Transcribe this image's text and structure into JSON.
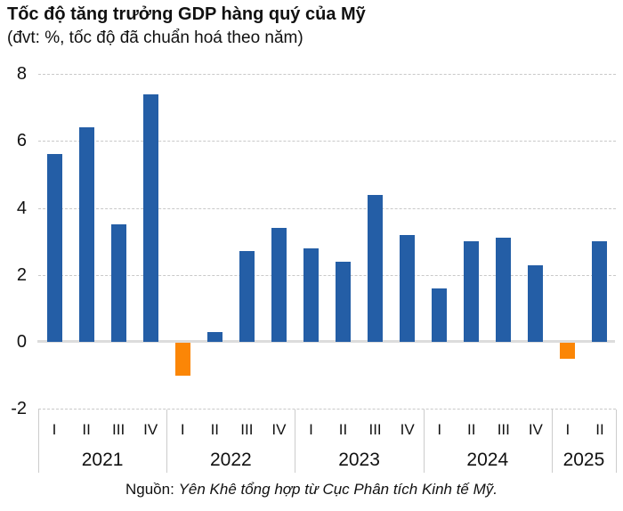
{
  "header": {
    "title": "Tốc độ tăng trưởng GDP hàng quý của Mỹ",
    "subtitle": "(đvt: %, tốc độ đã chuẩn hoá theo năm)"
  },
  "source": {
    "prefix": "Nguồn:",
    "text": "Yên Khê tổng hợp từ Cục Phân tích Kinh tế Mỹ."
  },
  "chart_data": {
    "type": "bar",
    "title": "Tốc độ tăng trưởng GDP hàng quý của Mỹ",
    "subtitle": "(đvt: %, tốc độ đã chuẩn hoá theo năm)",
    "unit": "%",
    "ylim": [
      -2,
      8
    ],
    "yticks": [
      8,
      6,
      4,
      2,
      0,
      -2
    ],
    "grid": "horizontal-dashed",
    "legend": "none",
    "groups": [
      {
        "year": "2021",
        "quarters": [
          "I",
          "II",
          "III",
          "IV"
        ],
        "values": [
          5.6,
          6.4,
          3.5,
          7.4
        ]
      },
      {
        "year": "2022",
        "quarters": [
          "I",
          "II",
          "III",
          "IV"
        ],
        "values": [
          -1.0,
          0.3,
          2.7,
          3.4
        ]
      },
      {
        "year": "2023",
        "quarters": [
          "I",
          "II",
          "III",
          "IV"
        ],
        "values": [
          2.8,
          2.4,
          4.4,
          3.2
        ]
      },
      {
        "year": "2024",
        "quarters": [
          "I",
          "II",
          "III",
          "IV"
        ],
        "values": [
          1.6,
          3.0,
          3.1,
          2.3
        ]
      },
      {
        "year": "2025",
        "quarters": [
          "I",
          "II"
        ],
        "values": [
          -0.5,
          3.0
        ]
      }
    ],
    "colors": {
      "positive_bar": "#245ea6",
      "negative_bar": "#fb8606",
      "gridline": "#c9c9c9",
      "zero_line": "#dcdcdc",
      "text": "#111111"
    }
  }
}
